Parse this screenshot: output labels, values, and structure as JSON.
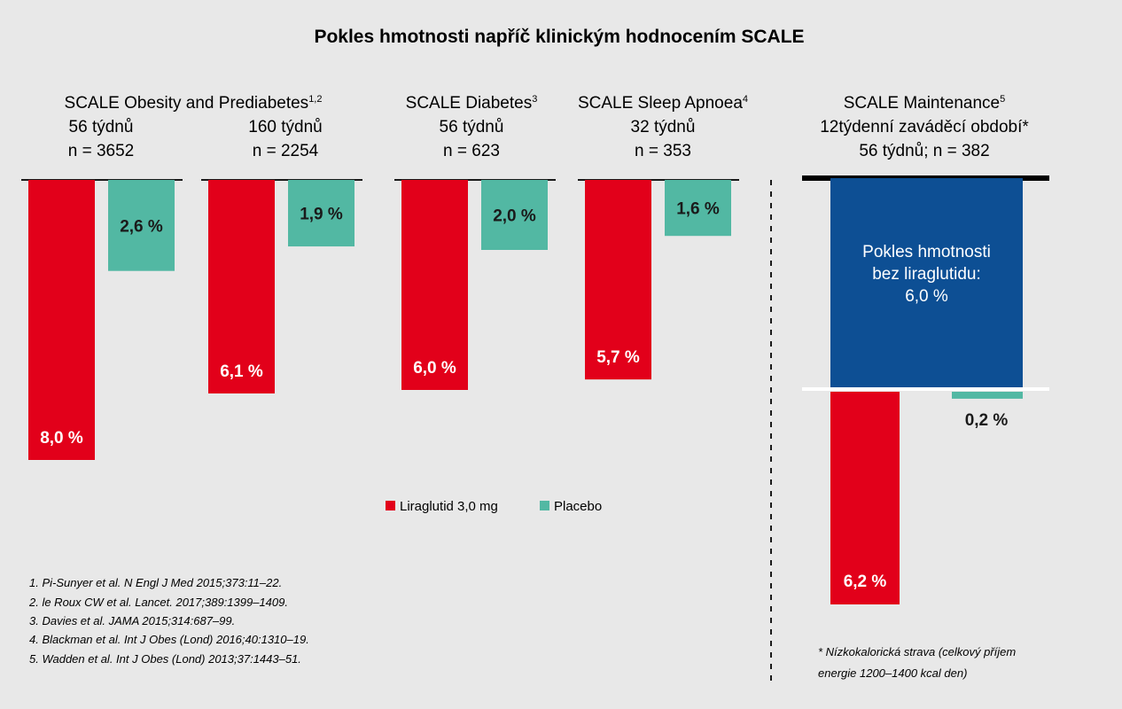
{
  "colors": {
    "liraglutide": "#e2001a",
    "placebo": "#52b8a3",
    "maintenance": "#0d4f94",
    "background": "#e8e8e8",
    "text": "#1a1a1a"
  },
  "chart_data": {
    "type": "bar",
    "title": "Pokles hmotnosti napříč klinickým hodnocením SCALE",
    "orientation": "downward",
    "unit": "%",
    "ylim": [
      0,
      8.0
    ],
    "legend": {
      "placement": "bottom-center",
      "items": [
        {
          "key": "lira",
          "label": "Liraglutid 3,0 mg"
        },
        {
          "key": "placebo",
          "label": "Placebo"
        }
      ]
    },
    "series": [
      {
        "name": "Liraglutid 3,0 mg",
        "values": [
          8.0,
          6.1,
          6.0,
          5.7,
          6.2
        ]
      },
      {
        "name": "Placebo",
        "values": [
          2.6,
          1.9,
          2.0,
          1.6,
          0.2
        ]
      }
    ],
    "studies": [
      {
        "name": "SCALE Obesity and Prediabetes",
        "sup": "1,2",
        "duration": "56 týdnů",
        "n": "n = 3652",
        "lira": 8.0,
        "placebo": 2.6,
        "lira_label": "8,0 %",
        "placebo_label": "2,6 %"
      },
      {
        "name": "",
        "sup": "",
        "duration": "160 týdnů",
        "n": "n = 2254",
        "lira": 6.1,
        "placebo": 1.9,
        "lira_label": "6,1 %",
        "placebo_label": "1,9 %"
      },
      {
        "name": "SCALE Diabetes",
        "sup": "3",
        "duration": "56 týdnů",
        "n": "n = 623",
        "lira": 6.0,
        "placebo": 2.0,
        "lira_label": "6,0 %",
        "placebo_label": "2,0 %"
      },
      {
        "name": "SCALE Sleep Apnoea",
        "sup": "4",
        "duration": "32 týdnů",
        "n": "n = 353",
        "lira": 5.7,
        "placebo": 1.6,
        "lira_label": "5,7 %",
        "placebo_label": "1,6 %"
      }
    ],
    "maintenance": {
      "name": "SCALE Maintenance",
      "sup": "5",
      "line2": "12týdenní zaváděcí období*",
      "line3": "56 týdnů; n = 382",
      "runin_value": 6.0,
      "runin_label_lines": [
        "Pokles hmotnosti",
        "bez liraglutidu:",
        "6,0 %"
      ],
      "lira": 6.2,
      "placebo": 0.2,
      "lira_label": "6,2 %",
      "placebo_label": "0,2 %"
    }
  },
  "references": [
    "1. Pi-Sunyer et al. N Engl J Med 2015;373:11–22.",
    "2. le Roux CW et al. Lancet. 2017;389:1399–1409.",
    "3. Davies et al. JAMA 2015;314:687–99.",
    "4. Blackman et al. Int J Obes (Lond) 2016;40:1310–19.",
    "5. Wadden et al. Int J Obes (Lond) 2013;37:1443–51."
  ],
  "footnote": [
    "* Nízkokalorická strava (celkový příjem",
    "energie 1200–1400 kcal den)"
  ]
}
